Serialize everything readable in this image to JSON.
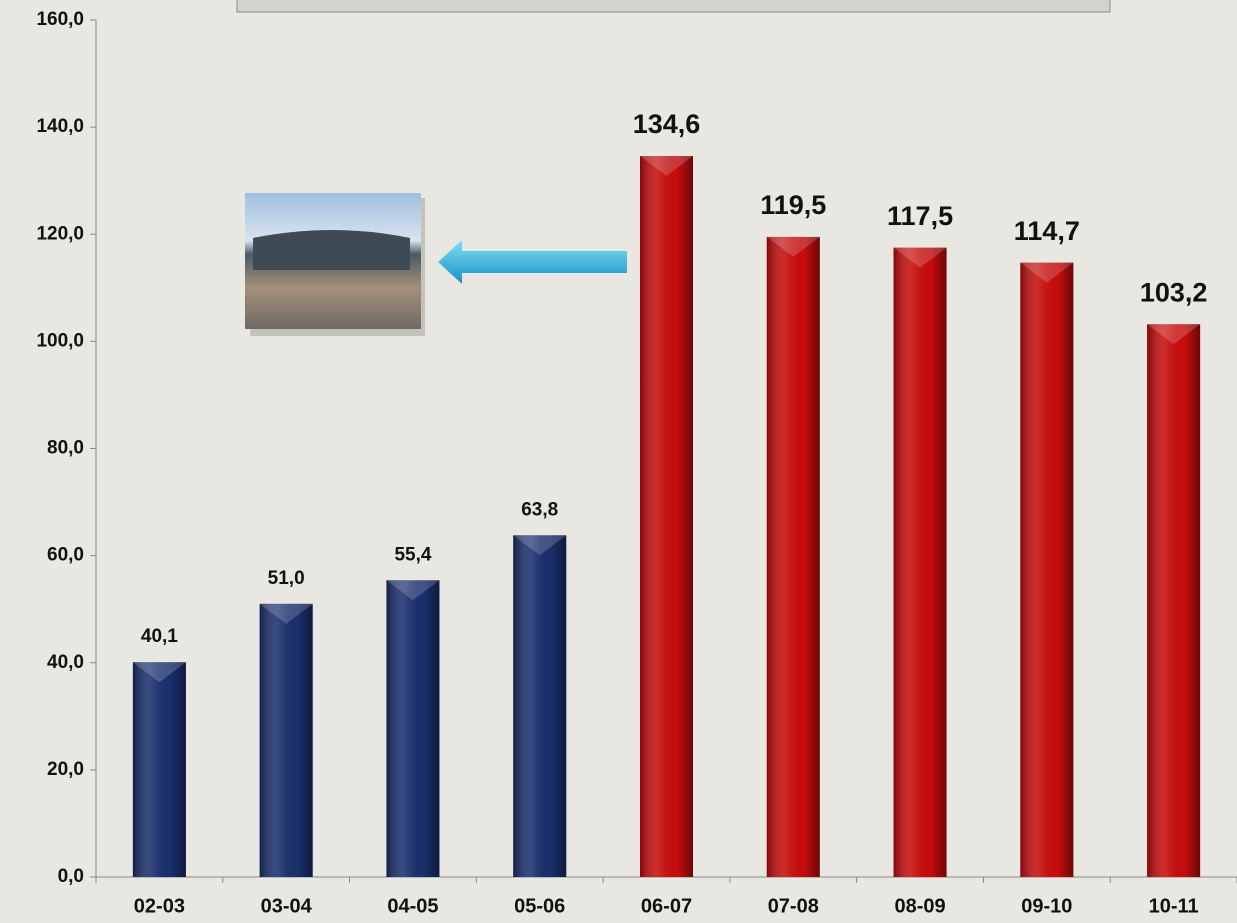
{
  "chart_data": {
    "type": "bar",
    "categories": [
      "02-03",
      "03-04",
      "04-05",
      "05-06",
      "06-07",
      "07-08",
      "08-09",
      "09-10",
      "10-11"
    ],
    "values": [
      40.1,
      51.0,
      55.4,
      63.8,
      134.6,
      119.5,
      117.5,
      114.7,
      103.2
    ],
    "value_labels": [
      "40,1",
      "51,0",
      "55,4",
      "63,8",
      "134,6",
      "119,5",
      "117,5",
      "114,7",
      "103,2"
    ],
    "colors": [
      "#1a2f6e",
      "#1a2f6e",
      "#1a2f6e",
      "#1a2f6e",
      "#c80c0c",
      "#c80c0c",
      "#c80c0c",
      "#c80c0c",
      "#c80c0c"
    ],
    "ylim": [
      0,
      160
    ],
    "yticks": [
      {
        "value": 0,
        "label": "0,0"
      },
      {
        "value": 20,
        "label": "20,0"
      },
      {
        "value": 40,
        "label": "40,0"
      },
      {
        "value": 60,
        "label": "60,0"
      },
      {
        "value": 80,
        "label": "80,0"
      },
      {
        "value": 100,
        "label": "100,0"
      },
      {
        "value": 120,
        "label": "120,0"
      },
      {
        "value": 140,
        "label": "140,0"
      },
      {
        "value": 160,
        "label": "160,0"
      }
    ],
    "grid": false
  }
}
